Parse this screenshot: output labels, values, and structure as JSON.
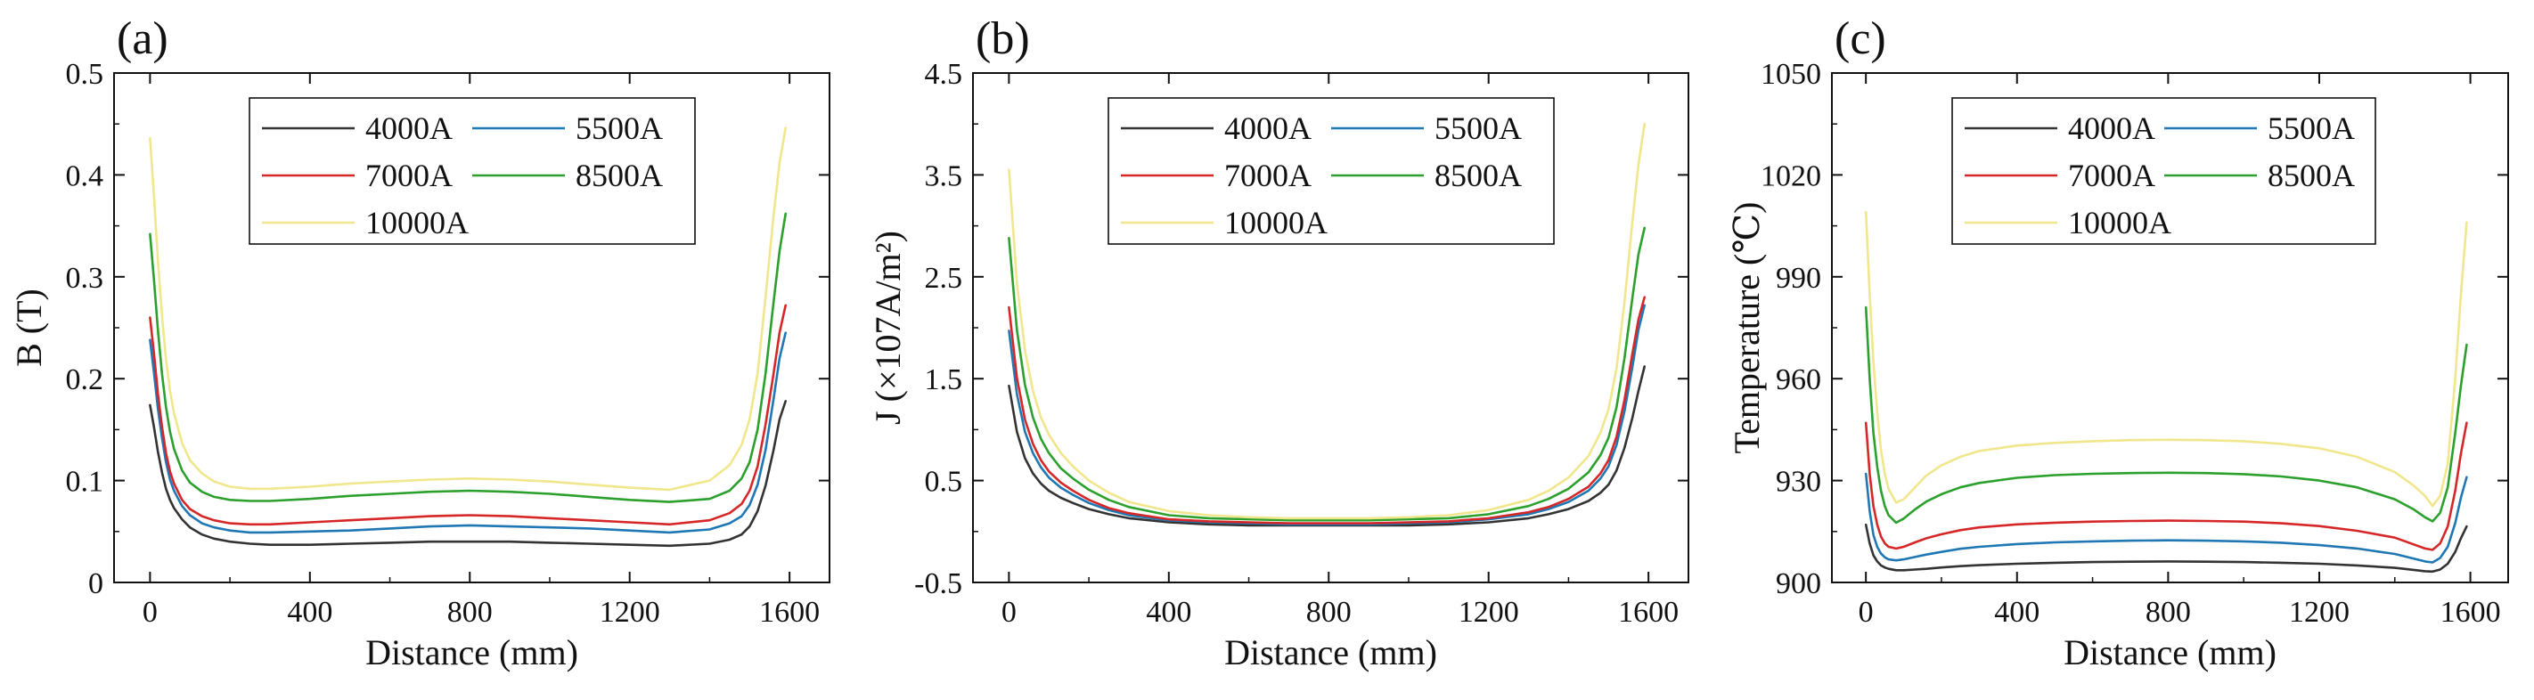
{
  "chart_data": [
    {
      "type": "line",
      "panel_label": "(a)",
      "xlabel": "Distance (mm)",
      "ylabel": "B (T)",
      "xlim": [
        -90,
        1700
      ],
      "ylim": [
        0,
        0.5
      ],
      "x_ticks": [
        0,
        400,
        800,
        1200,
        1600
      ],
      "x_tick_labels": [
        "0",
        "400",
        "800",
        "1200",
        "1600"
      ],
      "y_ticks": [
        0,
        0.1,
        0.2,
        0.3,
        0.4,
        0.5
      ],
      "y_tick_labels": [
        "0",
        "0.1",
        "0.2",
        "0.3",
        "0.4",
        "0.5"
      ],
      "grid": false,
      "legend_position": "top-center",
      "x": [
        0,
        10,
        20,
        30,
        40,
        50,
        60,
        80,
        100,
        130,
        160,
        200,
        250,
        300,
        400,
        500,
        600,
        700,
        800,
        900,
        1000,
        1100,
        1200,
        1300,
        1400,
        1450,
        1480,
        1500,
        1520,
        1540,
        1560,
        1575,
        1590
      ],
      "series": [
        {
          "name": "4000A",
          "color": "#333333",
          "values": [
            0.174,
            0.152,
            0.128,
            0.108,
            0.092,
            0.081,
            0.073,
            0.062,
            0.054,
            0.047,
            0.043,
            0.04,
            0.038,
            0.037,
            0.037,
            0.038,
            0.039,
            0.04,
            0.04,
            0.04,
            0.039,
            0.038,
            0.037,
            0.036,
            0.038,
            0.042,
            0.047,
            0.055,
            0.07,
            0.095,
            0.13,
            0.16,
            0.178
          ]
        },
        {
          "name": "5500A",
          "color": "#1f77b4",
          "values": [
            0.238,
            0.205,
            0.17,
            0.142,
            0.118,
            0.101,
            0.09,
            0.075,
            0.066,
            0.058,
            0.054,
            0.051,
            0.049,
            0.049,
            0.05,
            0.051,
            0.053,
            0.055,
            0.056,
            0.055,
            0.054,
            0.053,
            0.051,
            0.049,
            0.052,
            0.058,
            0.065,
            0.076,
            0.096,
            0.13,
            0.18,
            0.22,
            0.245
          ]
        },
        {
          "name": "7000A",
          "color": "#d62728",
          "values": [
            0.26,
            0.224,
            0.185,
            0.153,
            0.127,
            0.109,
            0.097,
            0.081,
            0.072,
            0.065,
            0.061,
            0.058,
            0.057,
            0.057,
            0.059,
            0.061,
            0.063,
            0.065,
            0.066,
            0.065,
            0.063,
            0.061,
            0.059,
            0.057,
            0.061,
            0.068,
            0.077,
            0.09,
            0.114,
            0.155,
            0.205,
            0.245,
            0.272
          ]
        },
        {
          "name": "8500A",
          "color": "#2ca02c",
          "values": [
            0.342,
            0.296,
            0.247,
            0.205,
            0.172,
            0.148,
            0.131,
            0.11,
            0.098,
            0.089,
            0.084,
            0.081,
            0.08,
            0.08,
            0.082,
            0.085,
            0.087,
            0.089,
            0.09,
            0.089,
            0.087,
            0.084,
            0.081,
            0.079,
            0.082,
            0.09,
            0.102,
            0.118,
            0.15,
            0.205,
            0.275,
            0.325,
            0.362
          ]
        },
        {
          "name": "10000A",
          "color": "#f0e68c",
          "values": [
            0.436,
            0.378,
            0.315,
            0.262,
            0.219,
            0.188,
            0.166,
            0.137,
            0.12,
            0.107,
            0.099,
            0.094,
            0.092,
            0.092,
            0.094,
            0.097,
            0.099,
            0.101,
            0.102,
            0.101,
            0.099,
            0.096,
            0.093,
            0.091,
            0.1,
            0.115,
            0.135,
            0.16,
            0.205,
            0.28,
            0.36,
            0.412,
            0.446
          ]
        }
      ]
    },
    {
      "type": "line",
      "panel_label": "(b)",
      "xlabel": "Distance (mm)",
      "ylabel": "J (×107A/m²)",
      "xlim": [
        -90,
        1700
      ],
      "ylim": [
        -0.5,
        4.5
      ],
      "x_ticks": [
        0,
        400,
        800,
        1200,
        1600
      ],
      "x_tick_labels": [
        "0",
        "400",
        "800",
        "1200",
        "1600"
      ],
      "y_ticks": [
        -0.5,
        0.5,
        1.5,
        2.5,
        3.5,
        4.5
      ],
      "y_tick_labels": [
        "-0.5",
        "0.5",
        "1.5",
        "2.5",
        "3.5",
        "4.5"
      ],
      "grid": false,
      "legend_position": "top-center",
      "x": [
        0,
        20,
        40,
        60,
        80,
        100,
        130,
        160,
        200,
        250,
        300,
        400,
        500,
        600,
        700,
        800,
        900,
        1000,
        1100,
        1200,
        1300,
        1350,
        1400,
        1450,
        1480,
        1500,
        1520,
        1540,
        1560,
        1575,
        1590
      ],
      "series": [
        {
          "name": "4000A",
          "color": "#333333",
          "values": [
            1.43,
            0.98,
            0.72,
            0.57,
            0.47,
            0.4,
            0.33,
            0.28,
            0.22,
            0.17,
            0.13,
            0.09,
            0.07,
            0.06,
            0.06,
            0.06,
            0.06,
            0.06,
            0.07,
            0.09,
            0.13,
            0.17,
            0.22,
            0.3,
            0.38,
            0.46,
            0.6,
            0.82,
            1.12,
            1.38,
            1.62
          ]
        },
        {
          "name": "5500A",
          "color": "#1f77b4",
          "values": [
            1.97,
            1.35,
            0.98,
            0.77,
            0.63,
            0.53,
            0.43,
            0.36,
            0.28,
            0.21,
            0.16,
            0.11,
            0.09,
            0.08,
            0.07,
            0.07,
            0.07,
            0.08,
            0.09,
            0.12,
            0.17,
            0.22,
            0.29,
            0.4,
            0.52,
            0.64,
            0.85,
            1.18,
            1.62,
            1.98,
            2.22
          ]
        },
        {
          "name": "7000A",
          "color": "#d62728",
          "values": [
            2.2,
            1.51,
            1.1,
            0.86,
            0.7,
            0.59,
            0.48,
            0.4,
            0.31,
            0.23,
            0.18,
            0.12,
            0.1,
            0.09,
            0.08,
            0.08,
            0.08,
            0.09,
            0.1,
            0.13,
            0.19,
            0.24,
            0.32,
            0.44,
            0.57,
            0.7,
            0.93,
            1.29,
            1.75,
            2.08,
            2.3
          ]
        },
        {
          "name": "8500A",
          "color": "#2ca02c",
          "values": [
            2.88,
            1.98,
            1.44,
            1.12,
            0.91,
            0.77,
            0.62,
            0.52,
            0.41,
            0.31,
            0.24,
            0.16,
            0.13,
            0.12,
            0.11,
            0.11,
            0.11,
            0.12,
            0.13,
            0.17,
            0.25,
            0.32,
            0.42,
            0.58,
            0.75,
            0.92,
            1.22,
            1.7,
            2.3,
            2.72,
            2.98
          ]
        },
        {
          "name": "10000A",
          "color": "#f0e68c",
          "values": [
            3.55,
            2.44,
            1.78,
            1.38,
            1.12,
            0.95,
            0.77,
            0.64,
            0.5,
            0.38,
            0.29,
            0.2,
            0.16,
            0.14,
            0.13,
            0.13,
            0.13,
            0.14,
            0.16,
            0.21,
            0.31,
            0.4,
            0.53,
            0.74,
            0.97,
            1.2,
            1.6,
            2.25,
            3.05,
            3.6,
            4.0
          ]
        }
      ]
    },
    {
      "type": "line",
      "panel_label": "(c)",
      "xlabel": "Distance (mm)",
      "ylabel": "Temperature (℃)",
      "xlim": [
        -90,
        1700
      ],
      "ylim": [
        900,
        1050
      ],
      "x_ticks": [
        0,
        400,
        800,
        1200,
        1600
      ],
      "x_tick_labels": [
        "0",
        "400",
        "800",
        "1200",
        "1600"
      ],
      "y_ticks": [
        900,
        930,
        960,
        990,
        1020,
        1050
      ],
      "y_tick_labels": [
        "900",
        "930",
        "960",
        "990",
        "1020",
        "1050"
      ],
      "grid": false,
      "legend_position": "top-center",
      "x": [
        0,
        10,
        20,
        30,
        40,
        50,
        60,
        80,
        100,
        130,
        160,
        200,
        250,
        300,
        400,
        500,
        600,
        700,
        800,
        900,
        1000,
        1100,
        1200,
        1300,
        1400,
        1450,
        1480,
        1500,
        1520,
        1540,
        1560,
        1575,
        1590
      ],
      "series": [
        {
          "name": "4000A",
          "color": "#333333",
          "values": [
            917.0,
            911.5,
            908.0,
            906.2,
            905.0,
            904.4,
            904.0,
            903.6,
            903.6,
            903.8,
            904.0,
            904.4,
            904.8,
            905.1,
            905.5,
            905.8,
            906.0,
            906.1,
            906.2,
            906.1,
            906.0,
            905.8,
            905.5,
            905.0,
            904.3,
            903.7,
            903.3,
            903.2,
            903.8,
            905.5,
            909.0,
            913.0,
            916.5
          ]
        },
        {
          "name": "5500A",
          "color": "#1f77b4",
          "values": [
            932.0,
            921.0,
            914.0,
            910.5,
            908.5,
            907.4,
            906.8,
            906.5,
            906.8,
            907.5,
            908.2,
            909.0,
            909.9,
            910.5,
            911.3,
            911.8,
            912.1,
            912.3,
            912.4,
            912.3,
            912.1,
            911.7,
            911.0,
            910.0,
            908.4,
            907.0,
            906.2,
            905.9,
            907.2,
            910.5,
            917.5,
            925.0,
            931.0
          ]
        },
        {
          "name": "7000A",
          "color": "#d62728",
          "values": [
            947.0,
            932.0,
            922.5,
            917.0,
            913.5,
            911.5,
            910.5,
            910.0,
            910.5,
            911.8,
            913.0,
            914.2,
            915.4,
            916.2,
            917.1,
            917.6,
            917.9,
            918.1,
            918.2,
            918.1,
            917.9,
            917.4,
            916.6,
            915.2,
            913.2,
            911.2,
            910.0,
            909.6,
            911.5,
            916.5,
            927.0,
            938.0,
            947.0
          ]
        },
        {
          "name": "8500A",
          "color": "#2ca02c",
          "values": [
            981.0,
            960.0,
            944.0,
            934.0,
            927.0,
            922.5,
            919.8,
            917.6,
            918.8,
            921.5,
            923.8,
            926.0,
            928.0,
            929.3,
            930.8,
            931.6,
            932.0,
            932.2,
            932.3,
            932.2,
            931.9,
            931.2,
            930.0,
            928.0,
            924.5,
            921.5,
            919.2,
            918.0,
            920.5,
            928.0,
            944.0,
            958.0,
            970.0
          ]
        },
        {
          "name": "10000A",
          "color": "#f0e68c",
          "values": [
            1009.0,
            985.0,
            965.0,
            950.0,
            939.0,
            932.0,
            927.5,
            923.5,
            924.5,
            928.0,
            931.5,
            934.5,
            937.0,
            938.7,
            940.3,
            941.1,
            941.6,
            941.9,
            942.0,
            941.9,
            941.6,
            940.8,
            939.5,
            937.0,
            932.5,
            928.5,
            925.5,
            922.5,
            925.5,
            935.0,
            960.0,
            985.0,
            1006.0
          ]
        }
      ]
    }
  ]
}
